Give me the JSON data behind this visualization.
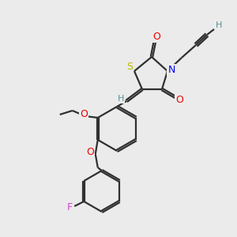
{
  "bg_color": "#ebebeb",
  "atom_colors": {
    "S": "#b8b800",
    "N": "#0000ee",
    "O": "#ee0000",
    "F": "#cc44cc",
    "C": "#303030",
    "H": "#5a9090"
  },
  "bond_color": "#303030",
  "bond_lw": 1.6,
  "figsize": [
    3.0,
    3.0
  ],
  "dpi": 100
}
